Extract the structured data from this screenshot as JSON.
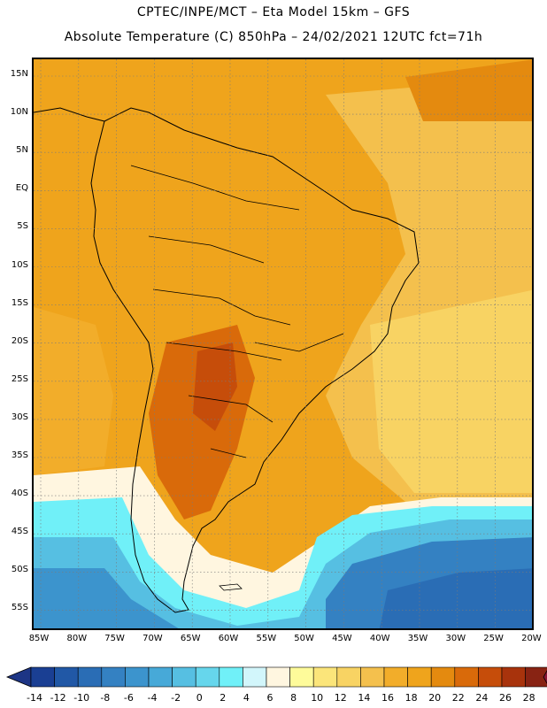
{
  "title": {
    "line1": "CPTEC/INPE/MCT –  Eta Model 15km – GFS",
    "line2": "Absolute Temperature (C) 850hPa – 24/02/2021 12UTC fct=71h"
  },
  "map": {
    "lat_labels": [
      "15N",
      "10N",
      "5N",
      "EQ",
      "5S",
      "10S",
      "15S",
      "20S",
      "25S",
      "30S",
      "35S",
      "40S",
      "45S",
      "50S",
      "55S"
    ],
    "lon_labels": [
      "85W",
      "80W",
      "75W",
      "70W",
      "65W",
      "60W",
      "55W",
      "50W",
      "45W",
      "40W",
      "35W",
      "30W",
      "25W",
      "20W"
    ]
  },
  "colorbar": {
    "labels": [
      "-14",
      "-12",
      "-10",
      "-8",
      "-6",
      "-4",
      "-2",
      "0",
      "2",
      "4",
      "6",
      "8",
      "10",
      "12",
      "14",
      "16",
      "18",
      "20",
      "22",
      "24",
      "26",
      "28"
    ],
    "colors": [
      "#1a3f93",
      "#2158a6",
      "#2a6db5",
      "#3481c2",
      "#3c94cd",
      "#47a9d8",
      "#56bfe2",
      "#66d6ec",
      "#70f0f8",
      "#d2f6fb",
      "#fff6e0",
      "#fefb9a",
      "#fbe57a",
      "#f8d363",
      "#f4c04d",
      "#f2ad2a",
      "#efa41c",
      "#e48a0f",
      "#d96a0a",
      "#c64d0a",
      "#a8330c",
      "#882313"
    ],
    "under_color": "#1d3585",
    "over_color": "#8a1535"
  }
}
